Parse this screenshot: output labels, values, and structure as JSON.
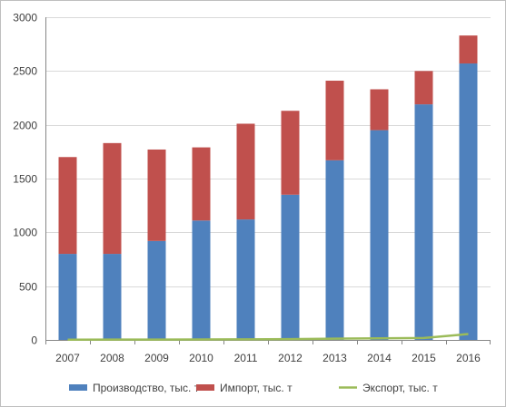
{
  "chart_data": {
    "type": "bar",
    "stacked": true,
    "categories": [
      "2007",
      "2008",
      "2009",
      "2010",
      "2011",
      "2012",
      "2013",
      "2014",
      "2015",
      "2016"
    ],
    "series": [
      {
        "name": "Производство, тыс. т",
        "kind": "bar",
        "color": "#4f81bd",
        "values": [
          800,
          800,
          920,
          1110,
          1120,
          1350,
          1670,
          1950,
          2190,
          2570
        ]
      },
      {
        "name": "Импорт, тыс. т",
        "kind": "bar",
        "color": "#c0504d",
        "values": [
          900,
          1030,
          850,
          680,
          890,
          780,
          740,
          380,
          310,
          260
        ]
      },
      {
        "name": "Экспорт, тыс. т",
        "kind": "line",
        "color": "#9bbb59",
        "values": [
          2,
          3,
          3,
          4,
          5,
          8,
          12,
          15,
          18,
          55
        ]
      }
    ],
    "title": "",
    "xlabel": "",
    "ylabel": "",
    "ylim": [
      0,
      3000
    ],
    "yticks": [
      "0",
      "500",
      "1000",
      "1500",
      "2000",
      "2500",
      "3000"
    ],
    "grid": true,
    "legend_position": "bottom"
  }
}
